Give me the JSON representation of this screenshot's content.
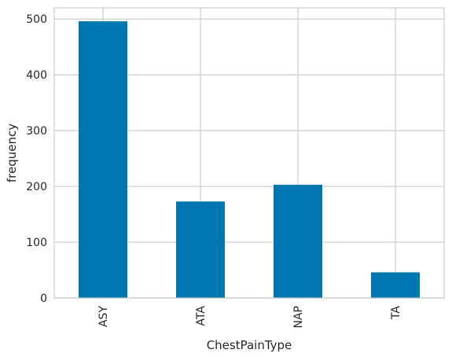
{
  "chart_data": {
    "type": "bar",
    "title": "",
    "xlabel": "ChestPainType",
    "ylabel": "frequency",
    "categories": [
      "ASY",
      "ATA",
      "NAP",
      "TA"
    ],
    "values": [
      496,
      173,
      203,
      46
    ],
    "ylim": [
      0,
      520
    ],
    "yticks": [
      0,
      100,
      200,
      300,
      400,
      500
    ],
    "grid": true,
    "bar_color": "#0077b0",
    "grid_color": "#cccccc",
    "xtick_rotation": "vertical"
  }
}
